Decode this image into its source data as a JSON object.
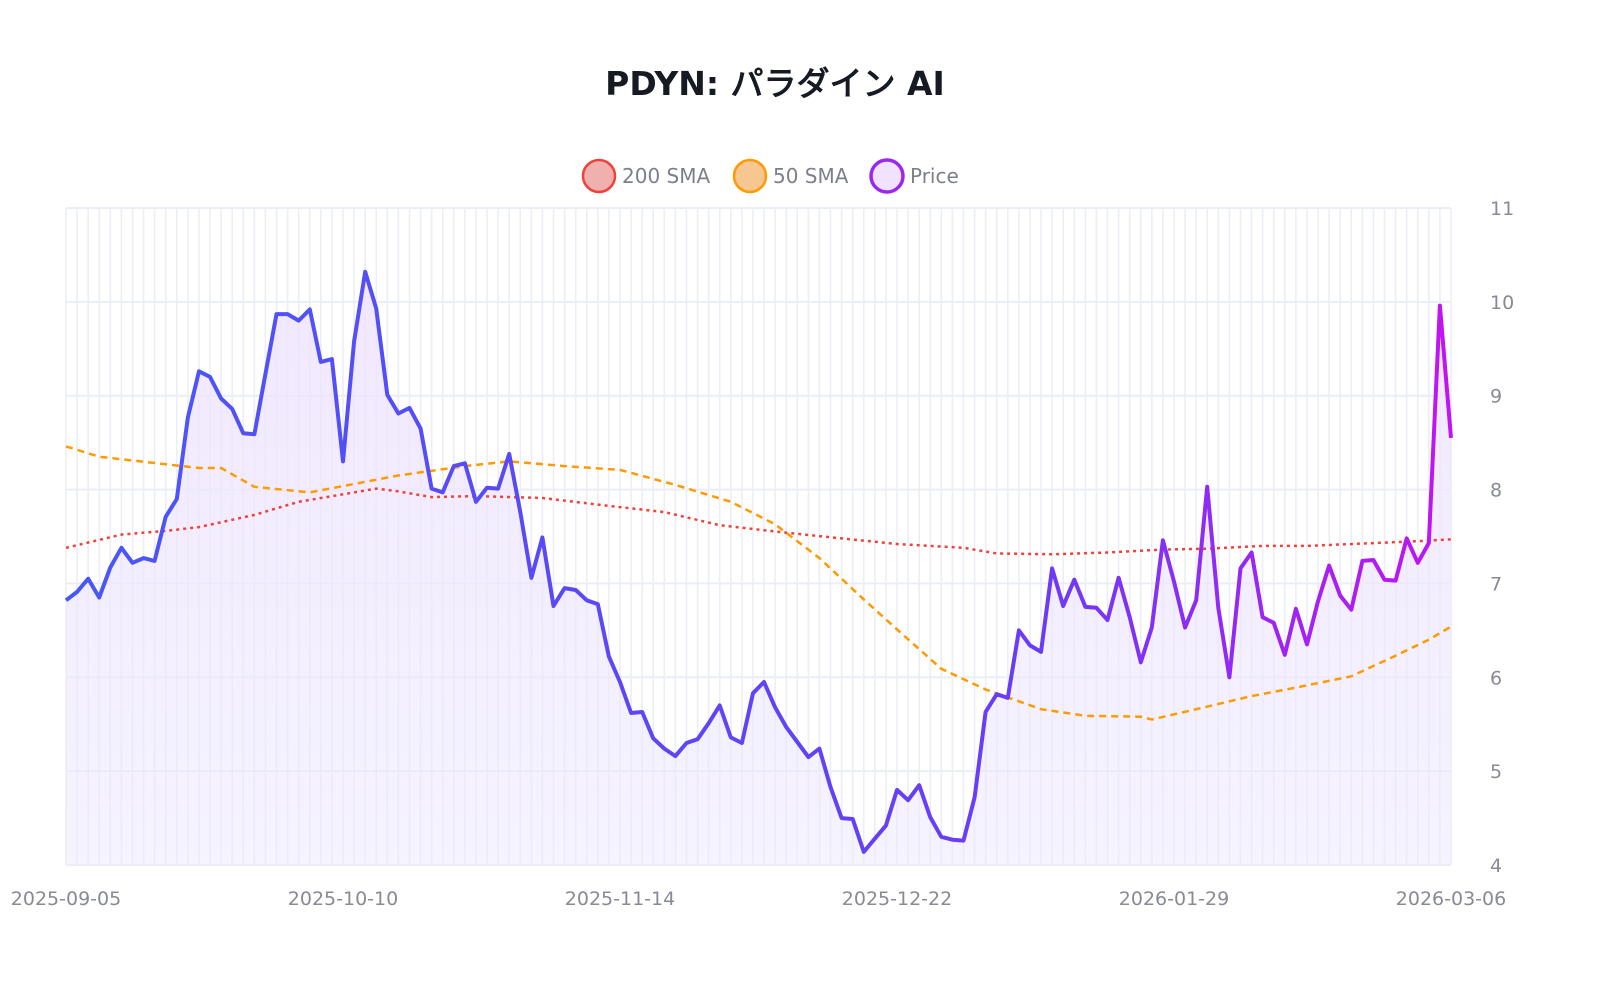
{
  "chart_data": {
    "type": "line",
    "title": "PDYN: パラダイン AI",
    "xlabel": "",
    "ylabel": "",
    "ylim": [
      4,
      11
    ],
    "y_ticks": [
      "4",
      "5",
      "6",
      "7",
      "8",
      "9",
      "10",
      "11"
    ],
    "x_ticks": [
      "2025-09-05",
      "2025-10-10",
      "2025-11-14",
      "2025-12-22",
      "2026-01-29",
      "2026-03-06"
    ],
    "grid": true,
    "legend_placement": "top-center",
    "y_axis_side": "right",
    "legend": [
      "200 SMA",
      "50 SMA",
      "Price"
    ],
    "colors": {
      "sma200": "#f0413a",
      "sma50": "#ff9a00",
      "price_start": "#4a57f7",
      "price_end": "#c214f2",
      "fill": "#ece4fb"
    },
    "dates": [
      "2025-09-05",
      "2025-09-08",
      "2025-09-09",
      "2025-09-10",
      "2025-09-11",
      "2025-09-12",
      "2025-09-15",
      "2025-09-16",
      "2025-09-17",
      "2025-09-18",
      "2025-09-19",
      "2025-09-22",
      "2025-09-23",
      "2025-09-24",
      "2025-09-25",
      "2025-09-26",
      "2025-09-29",
      "2025-09-30",
      "2025-10-01",
      "2025-10-02",
      "2025-10-03",
      "2025-10-06",
      "2025-10-07",
      "2025-10-08",
      "2025-10-09",
      "2025-10-10",
      "2025-10-13",
      "2025-10-14",
      "2025-10-15",
      "2025-10-16",
      "2025-10-17",
      "2025-10-20",
      "2025-10-21",
      "2025-10-22",
      "2025-10-23",
      "2025-10-24",
      "2025-10-27",
      "2025-10-28",
      "2025-10-29",
      "2025-10-30",
      "2025-10-31",
      "2025-11-03",
      "2025-11-04",
      "2025-11-05",
      "2025-11-06",
      "2025-11-07",
      "2025-11-10",
      "2025-11-11",
      "2025-11-12",
      "2025-11-13",
      "2025-11-14",
      "2025-11-17",
      "2025-11-18",
      "2025-11-19",
      "2025-11-20",
      "2025-11-21",
      "2025-11-24",
      "2025-11-25",
      "2025-11-26",
      "2025-11-28",
      "2025-12-01",
      "2025-12-02",
      "2025-12-03",
      "2025-12-04",
      "2025-12-05",
      "2025-12-08",
      "2025-12-09",
      "2025-12-10",
      "2025-12-11",
      "2025-12-12",
      "2025-12-15",
      "2025-12-16",
      "2025-12-17",
      "2025-12-18",
      "2025-12-19",
      "2025-12-22",
      "2025-12-23",
      "2025-12-24",
      "2025-12-26",
      "2025-12-29",
      "2025-12-30",
      "2025-12-31",
      "2026-01-02",
      "2026-01-05",
      "2026-01-06",
      "2026-01-07",
      "2026-01-08",
      "2026-01-09",
      "2026-01-12",
      "2026-01-13",
      "2026-01-14",
      "2026-01-15",
      "2026-01-16",
      "2026-01-20",
      "2026-01-21",
      "2026-01-22",
      "2026-01-23",
      "2026-01-26",
      "2026-01-27",
      "2026-01-28",
      "2026-01-29",
      "2026-01-30",
      "2026-02-02",
      "2026-02-03",
      "2026-02-04",
      "2026-02-05",
      "2026-02-06",
      "2026-02-09",
      "2026-02-10",
      "2026-02-11",
      "2026-02-12",
      "2026-02-13",
      "2026-02-17",
      "2026-02-18",
      "2026-02-19",
      "2026-02-20",
      "2026-02-23",
      "2026-02-24",
      "2026-02-25",
      "2026-02-26",
      "2026-02-27",
      "2026-03-02",
      "2026-03-03",
      "2026-03-04",
      "2026-03-05",
      "2026-03-06"
    ],
    "series": [
      {
        "name": "Price",
        "values": [
          6.82,
          6.91,
          7.05,
          6.85,
          7.17,
          7.38,
          7.22,
          7.27,
          7.24,
          7.71,
          7.9,
          8.77,
          9.26,
          9.2,
          8.97,
          8.86,
          8.6,
          8.59,
          9.23,
          9.87,
          9.87,
          9.8,
          9.92,
          9.36,
          9.39,
          8.3,
          9.58,
          10.32,
          9.93,
          9.01,
          8.81,
          8.87,
          8.65,
          8.01,
          7.97,
          8.25,
          8.28,
          7.87,
          8.02,
          8.01,
          8.38,
          7.76,
          7.06,
          7.49,
          6.76,
          6.95,
          6.93,
          6.82,
          6.78,
          6.22,
          5.95,
          5.62,
          5.63,
          5.35,
          5.24,
          5.16,
          5.3,
          5.34,
          5.51,
          5.7,
          5.36,
          5.3,
          5.83,
          5.95,
          5.68,
          5.47,
          5.31,
          5.15,
          5.24,
          4.83,
          4.5,
          4.49,
          4.14,
          4.28,
          4.42,
          4.8,
          4.69,
          4.85,
          4.51,
          4.3,
          4.27,
          4.26,
          4.72,
          5.63,
          5.82,
          5.78,
          6.5,
          6.34,
          6.27,
          7.16,
          6.76,
          7.04,
          6.75,
          6.74,
          6.61,
          7.06,
          6.64,
          6.16,
          6.53,
          7.46,
          7.02,
          6.53,
          6.82,
          8.03,
          6.74,
          6.0,
          7.16,
          7.33,
          6.64,
          6.58,
          6.24,
          6.73,
          6.35,
          6.81,
          7.19,
          6.87,
          6.72,
          7.24,
          7.25,
          7.04,
          7.03,
          7.48,
          7.22,
          7.43,
          9.96,
          8.55
        ]
      },
      {
        "name": "50 SMA",
        "points": [
          [
            "2025-09-05",
            8.46
          ],
          [
            "2025-09-10",
            8.35
          ],
          [
            "2025-09-23",
            8.23
          ],
          [
            "2025-09-25",
            8.23
          ],
          [
            "2025-09-30",
            8.03
          ],
          [
            "2025-10-07",
            7.97
          ],
          [
            "2025-10-17",
            8.15
          ],
          [
            "2025-10-27",
            8.25
          ],
          [
            "2025-10-31",
            8.3
          ],
          [
            "2025-11-07",
            8.25
          ],
          [
            "2025-11-14",
            8.21
          ],
          [
            "2025-11-21",
            8.05
          ],
          [
            "2025-12-01",
            7.87
          ],
          [
            "2025-12-05",
            7.63
          ],
          [
            "2025-12-11",
            7.27
          ],
          [
            "2025-12-17",
            6.83
          ],
          [
            "2025-12-22",
            6.51
          ],
          [
            "2025-12-29",
            6.09
          ],
          [
            "2026-01-05",
            5.87
          ],
          [
            "2026-01-12",
            5.66
          ],
          [
            "2026-01-16",
            5.59
          ],
          [
            "2026-01-26",
            5.58
          ],
          [
            "2026-01-27",
            5.55
          ],
          [
            "2026-02-02",
            5.66
          ],
          [
            "2026-02-09",
            5.8
          ],
          [
            "2026-02-13",
            5.89
          ],
          [
            "2026-02-23",
            6.01
          ],
          [
            "2026-02-27",
            6.23
          ],
          [
            "2026-03-04",
            6.4
          ],
          [
            "2026-03-06",
            6.54
          ]
        ]
      },
      {
        "name": "200 SMA",
        "points": [
          [
            "2025-09-05",
            7.38
          ],
          [
            "2025-09-12",
            7.52
          ],
          [
            "2025-09-18",
            7.56
          ],
          [
            "2025-09-23",
            7.6
          ],
          [
            "2025-09-30",
            7.73
          ],
          [
            "2025-10-06",
            7.87
          ],
          [
            "2025-10-10",
            7.95
          ],
          [
            "2025-10-15",
            8.01
          ],
          [
            "2025-10-17",
            7.98
          ],
          [
            "2025-10-22",
            7.92
          ],
          [
            "2025-10-28",
            7.93
          ],
          [
            "2025-11-05",
            7.91
          ],
          [
            "2025-11-12",
            7.84
          ],
          [
            "2025-11-20",
            7.76
          ],
          [
            "2025-11-28",
            7.62
          ],
          [
            "2025-12-08",
            7.54
          ],
          [
            "2025-12-15",
            7.48
          ],
          [
            "2025-12-22",
            7.42
          ],
          [
            "2025-12-31",
            7.38
          ],
          [
            "2026-01-06",
            7.32
          ],
          [
            "2026-01-13",
            7.31
          ],
          [
            "2026-01-21",
            7.33
          ],
          [
            "2026-01-28",
            7.36
          ],
          [
            "2026-02-03",
            7.37
          ],
          [
            "2026-02-10",
            7.4
          ],
          [
            "2026-02-17",
            7.4
          ],
          [
            "2026-02-25",
            7.43
          ],
          [
            "2026-03-03",
            7.45
          ],
          [
            "2026-03-06",
            7.47
          ]
        ]
      }
    ]
  }
}
